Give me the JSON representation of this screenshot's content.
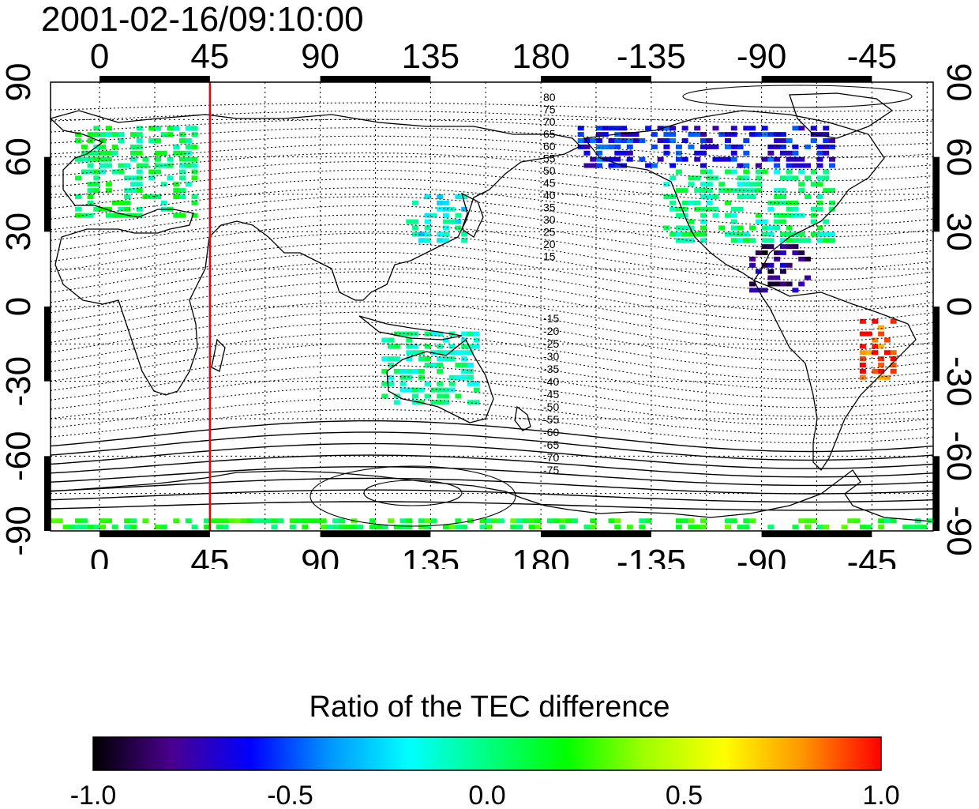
{
  "title": "2001-02-16/09:10:00",
  "chart_data": {
    "type": "heatmap",
    "title": "2001-02-16/09:10:00",
    "projection": "equirectangular",
    "x_axis_top": {
      "ticks": [
        "0",
        "45",
        "90",
        "135",
        "180",
        "-135",
        "-90",
        "-45"
      ],
      "xlim": [
        -20,
        340
      ]
    },
    "x_axis_bottom": {
      "ticks": [
        "0",
        "45",
        "90",
        "135",
        "180",
        "-135",
        "-90",
        "-45"
      ]
    },
    "y_axis_left": {
      "ticks": [
        "90",
        "60",
        "30",
        "0",
        "-30",
        "-60",
        "-90"
      ],
      "ylim": [
        -90,
        90
      ]
    },
    "y_axis_right": {
      "ticks": [
        "90",
        "60",
        "30",
        "0",
        "-30",
        "-60",
        "-90"
      ]
    },
    "grid": true,
    "vertical_marker": {
      "lon": 45,
      "color": "#d01010"
    },
    "contour_labels_north": [
      "80",
      "75",
      "70",
      "65",
      "60",
      "55",
      "50",
      "45",
      "40",
      "35",
      "30",
      "25",
      "20",
      "15"
    ],
    "contour_labels_south": [
      "-15",
      "-20",
      "-25",
      "-30",
      "-35",
      "-40",
      "-45",
      "-50",
      "-55",
      "-60",
      "-65",
      "-70",
      "-75"
    ],
    "colorbar": {
      "title": "Ratio of the TEC difference",
      "range": [
        -1.0,
        1.0
      ],
      "ticks": [
        "-1.0",
        "-0.5",
        "0.0",
        "0.5",
        "1.0"
      ],
      "colormap": [
        "#000000",
        "#4a0090",
        "#0000ff",
        "#0096ff",
        "#00ffff",
        "#00ff80",
        "#00ff00",
        "#a0ff00",
        "#ffff00",
        "#ff9600",
        "#ff0000"
      ]
    },
    "regions": [
      {
        "name": "Europe",
        "lon_range": [
          -10,
          40
        ],
        "lat_range": [
          35,
          72
        ],
        "value": 0.05
      },
      {
        "name": "Japan/East Asia",
        "lon_range": [
          125,
          150
        ],
        "lat_range": [
          25,
          45
        ],
        "value": -0.15
      },
      {
        "name": "North America",
        "lon_range": [
          -130,
          -60
        ],
        "lat_range": [
          25,
          55
        ],
        "value": 0.0
      },
      {
        "name": "Alaska/Canada north",
        "lon_range": [
          -165,
          -60
        ],
        "lat_range": [
          55,
          72
        ],
        "value": -0.6
      },
      {
        "name": "Caribbean",
        "lon_range": [
          -95,
          -70
        ],
        "lat_range": [
          5,
          25
        ],
        "value": -0.8
      },
      {
        "name": "Brazil east",
        "lon_range": [
          -50,
          -35
        ],
        "lat_range": [
          -30,
          -5
        ],
        "value": 0.9
      },
      {
        "name": "Australia",
        "lon_range": [
          115,
          155
        ],
        "lat_range": [
          -40,
          -10
        ],
        "value": -0.05
      },
      {
        "name": "Antarctica coast",
        "lon_range": [
          -20,
          340
        ],
        "lat_range": [
          -90,
          -85
        ],
        "value": 0.15
      }
    ]
  }
}
